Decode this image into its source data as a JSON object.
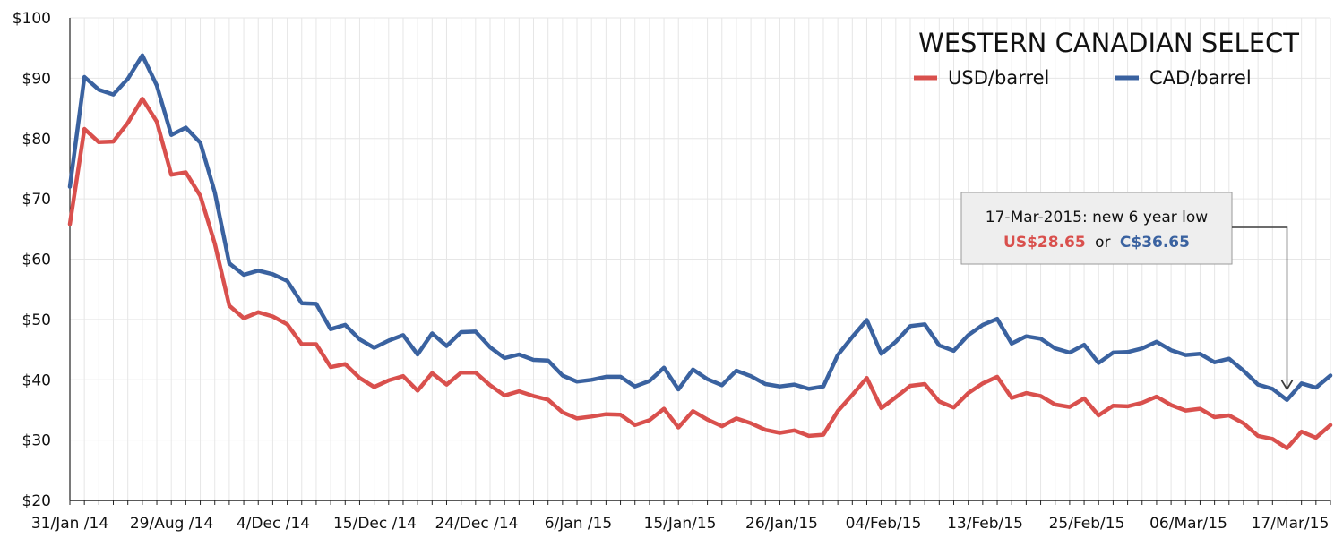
{
  "colors": {
    "usd": "#d9504d",
    "cad": "#3a62a0",
    "grid": "#e6e6e6",
    "axis": "#222222"
  },
  "chart_data": {
    "type": "line",
    "title": "WESTERN CANADIAN SELECT",
    "xlabel": "",
    "ylabel": "",
    "ylim": [
      20,
      100
    ],
    "y_ticks": [
      "$20",
      "$30",
      "$40",
      "$50",
      "$60",
      "$70",
      "$80",
      "$90",
      "$100"
    ],
    "x_tick_labels": [
      "31/Jan /14",
      "29/Aug /14",
      "4/Dec /14",
      "15/Dec /14",
      "24/Dec /14",
      "6/Jan /15",
      "15/Jan/15",
      "26/Jan/15",
      "04/Feb/15",
      "13/Feb/15",
      "25/Feb/15",
      "06/Mar/15",
      "17/Mar/15"
    ],
    "grid": true,
    "legend_position": "top-right",
    "series": [
      {
        "name": "USD/barrel",
        "color": "#d9504d",
        "values": [
          65.8,
          81.6,
          79.4,
          79.5,
          82.6,
          86.6,
          82.8,
          74,
          74.4,
          70.5,
          62.6,
          52.3,
          50.2,
          51.2,
          50.5,
          49.2,
          45.9,
          45.9,
          42.1,
          42.6,
          40.3,
          38.8,
          39.9,
          40.6,
          38.2,
          41.1,
          39.2,
          41.2,
          41.2,
          39.1,
          37.4,
          38.1,
          37.3,
          36.7,
          34.6,
          33.6,
          33.9,
          34.3,
          34.2,
          32.5,
          33.3,
          35.2,
          32.1,
          34.8,
          33.4,
          32.3,
          33.6,
          32.8,
          31.7,
          31.2,
          31.6,
          30.7,
          30.9,
          34.8,
          37.5,
          40.3,
          35.3,
          37.1,
          39,
          39.3,
          36.4,
          35.4,
          37.8,
          39.4,
          40.5,
          37,
          37.8,
          37.3,
          35.9,
          35.5,
          36.9,
          34.1,
          35.7,
          35.6,
          36.2,
          37.2,
          35.8,
          34.9,
          35.2,
          33.8,
          34.1,
          32.8,
          30.7,
          30.2,
          28.65,
          31.4,
          30.4,
          32.5
        ]
      },
      {
        "name": "CAD/barrel",
        "color": "#3a62a0",
        "values": [
          72,
          90.2,
          88.1,
          87.3,
          89.9,
          93.8,
          88.8,
          80.6,
          81.8,
          79.3,
          71.1,
          59.3,
          57.4,
          58.1,
          57.5,
          56.4,
          52.7,
          52.6,
          48.4,
          49.1,
          46.7,
          45.3,
          46.5,
          47.4,
          44.2,
          47.7,
          45.6,
          47.9,
          48,
          45.4,
          43.6,
          44.2,
          43.3,
          43.2,
          40.7,
          39.7,
          40,
          40.5,
          40.5,
          38.9,
          39.8,
          42,
          38.4,
          41.7,
          40.1,
          39.1,
          41.5,
          40.6,
          39.3,
          38.9,
          39.2,
          38.5,
          38.9,
          44.1,
          47.1,
          49.9,
          44.3,
          46.3,
          48.9,
          49.2,
          45.7,
          44.8,
          47.4,
          49.1,
          50.1,
          46,
          47.2,
          46.8,
          45.2,
          44.5,
          45.8,
          42.8,
          44.5,
          44.6,
          45.2,
          46.3,
          44.9,
          44.1,
          44.3,
          42.9,
          43.5,
          41.5,
          39.2,
          38.5,
          36.65,
          39.4,
          38.7,
          40.7
        ]
      }
    ],
    "annotation": {
      "line1": "17-Mar-2015: new 6 year low",
      "usd_value": "US$28.65",
      "joiner": "or",
      "cad_value": "C$36.65",
      "target_index": 84,
      "target_series": "CAD/barrel"
    }
  }
}
